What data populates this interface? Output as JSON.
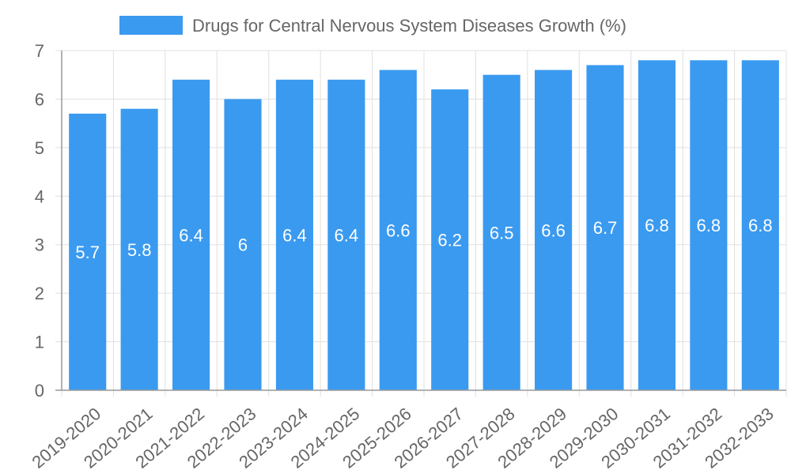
{
  "chart_data": {
    "type": "bar",
    "categories": [
      "2019-2020",
      "2020-2021",
      "2021-2022",
      "2022-2023",
      "2023-2024",
      "2024-2025",
      "2025-2026",
      "2026-2027",
      "2027-2028",
      "2028-2029",
      "2029-2030",
      "2030-2031",
      "2031-2032",
      "2032-2033"
    ],
    "series": [
      {
        "name": "Drugs for Central Nervous System Diseases Growth (%)",
        "values": [
          5.7,
          5.8,
          6.4,
          6,
          6.4,
          6.4,
          6.6,
          6.2,
          6.5,
          6.6,
          6.7,
          6.8,
          6.8,
          6.8
        ],
        "labels": [
          "5.7",
          "5.8",
          "6.4",
          "6",
          "6.4",
          "6.4",
          "6.6",
          "6.2",
          "6.5",
          "6.6",
          "6.7",
          "6.8",
          "6.8",
          "6.8"
        ]
      }
    ],
    "title": "",
    "xlabel": "",
    "ylabel": "",
    "ylim": [
      0,
      7
    ],
    "yticks": [
      "0",
      "1",
      "2",
      "3",
      "4",
      "5",
      "6",
      "7"
    ],
    "grid": true,
    "legend_position": "top-center",
    "colors": {
      "bar": "#3A9AF0",
      "grid": "#e0e0e0",
      "axis": "#999999",
      "text": "#666666",
      "label": "#ffffff"
    }
  }
}
